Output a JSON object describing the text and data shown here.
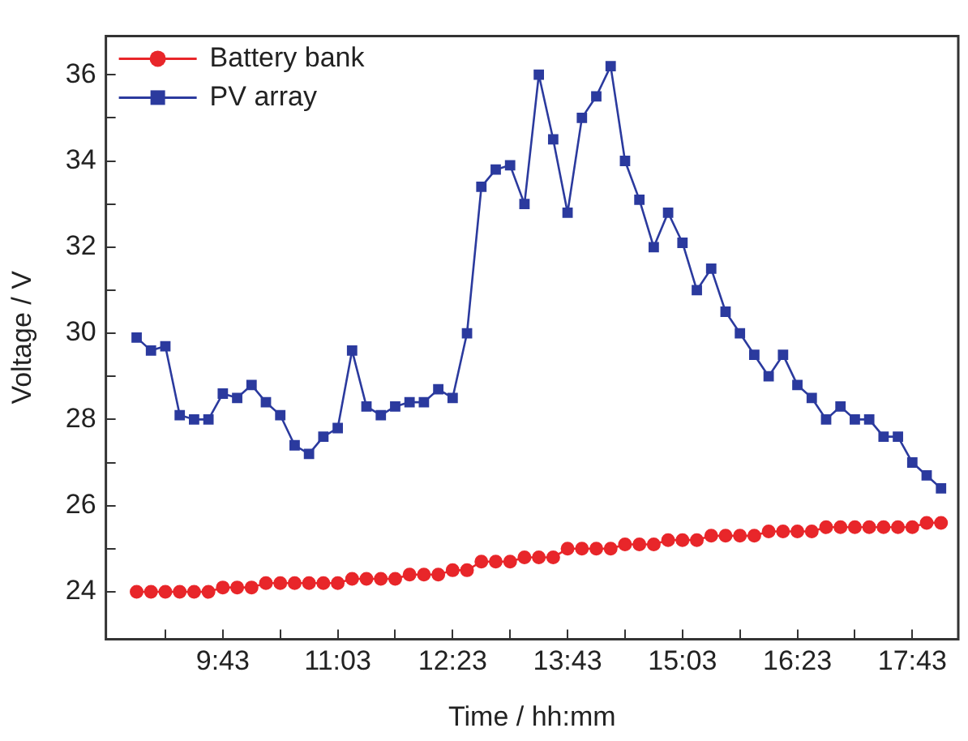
{
  "chart_data": {
    "type": "line",
    "xlabel": "Time / hh:mm",
    "ylabel": "Voltage / V",
    "x": [
      8.7167,
      8.8833,
      9.05,
      9.2167,
      9.3833,
      9.55,
      9.7167,
      9.8833,
      10.05,
      10.2167,
      10.3833,
      10.55,
      10.7167,
      10.8833,
      11.05,
      11.2167,
      11.3833,
      11.55,
      11.7167,
      11.8833,
      12.05,
      12.2167,
      12.3833,
      12.55,
      12.7167,
      12.8833,
      13.05,
      13.2167,
      13.3833,
      13.55,
      13.7167,
      13.8833,
      14.05,
      14.2167,
      14.3833,
      14.55,
      14.7167,
      14.8833,
      15.05,
      15.2167,
      15.3833,
      15.55,
      15.7167,
      15.8833,
      16.05,
      16.2167,
      16.3833,
      16.55,
      16.7167,
      16.8833,
      17.05,
      17.2167,
      17.3833,
      17.55,
      17.7167,
      17.8833,
      18.05
    ],
    "series": [
      {
        "name": "Battery bank",
        "color": "#e8262a",
        "marker": "circle",
        "values": [
          24.0,
          24.0,
          24.0,
          24.0,
          24.0,
          24.0,
          24.1,
          24.1,
          24.1,
          24.2,
          24.2,
          24.2,
          24.2,
          24.2,
          24.2,
          24.3,
          24.3,
          24.3,
          24.3,
          24.4,
          24.4,
          24.4,
          24.5,
          24.5,
          24.7,
          24.7,
          24.7,
          24.8,
          24.8,
          24.8,
          25.0,
          25.0,
          25.0,
          25.0,
          25.1,
          25.1,
          25.1,
          25.2,
          25.2,
          25.2,
          25.3,
          25.3,
          25.3,
          25.3,
          25.4,
          25.4,
          25.4,
          25.4,
          25.5,
          25.5,
          25.5,
          25.5,
          25.5,
          25.5,
          25.5,
          25.6,
          25.6
        ]
      },
      {
        "name": "PV array",
        "color": "#2b3a9e",
        "marker": "square",
        "values": [
          29.9,
          29.6,
          29.7,
          28.1,
          28.0,
          28.0,
          28.6,
          28.5,
          28.8,
          28.4,
          28.1,
          27.4,
          27.2,
          27.6,
          27.8,
          29.6,
          28.3,
          28.1,
          28.3,
          28.4,
          28.4,
          28.7,
          28.5,
          30.0,
          33.4,
          33.8,
          33.9,
          33.0,
          36.0,
          34.5,
          32.8,
          35.0,
          35.5,
          36.2,
          34.0,
          33.1,
          32.0,
          32.8,
          32.1,
          31.0,
          31.5,
          30.5,
          30.0,
          29.5,
          29.0,
          29.5,
          28.8,
          28.5,
          28.0,
          28.3,
          28.0,
          28.0,
          27.6,
          27.6,
          27.0,
          26.7,
          26.4
        ]
      }
    ],
    "xlim": [
      8.36,
      18.25
    ],
    "xticks": [
      {
        "value": 9.05,
        "label": null
      },
      {
        "value": 9.7167,
        "label": "9:43"
      },
      {
        "value": 10.3833,
        "label": null
      },
      {
        "value": 11.05,
        "label": "11:03"
      },
      {
        "value": 11.7167,
        "label": null
      },
      {
        "value": 12.3833,
        "label": "12:23"
      },
      {
        "value": 13.05,
        "label": null
      },
      {
        "value": 13.7167,
        "label": "13:43"
      },
      {
        "value": 14.3833,
        "label": null
      },
      {
        "value": 15.05,
        "label": "15:03"
      },
      {
        "value": 15.7167,
        "label": null
      },
      {
        "value": 16.3833,
        "label": "16:23"
      },
      {
        "value": 17.05,
        "label": null
      },
      {
        "value": 17.7167,
        "label": "17:43"
      }
    ],
    "ylim": [
      22.9,
      36.9
    ],
    "yticks": [
      24,
      {
        "value": 25,
        "label": null
      },
      26,
      {
        "value": 27,
        "label": null
      },
      28,
      {
        "value": 29,
        "label": null
      },
      30,
      {
        "value": 31,
        "label": null
      },
      32,
      {
        "value": 33,
        "label": null
      },
      34,
      {
        "value": 35,
        "label": null
      },
      36
    ],
    "legend": "top left",
    "grid": false,
    "line_style": "solid"
  }
}
